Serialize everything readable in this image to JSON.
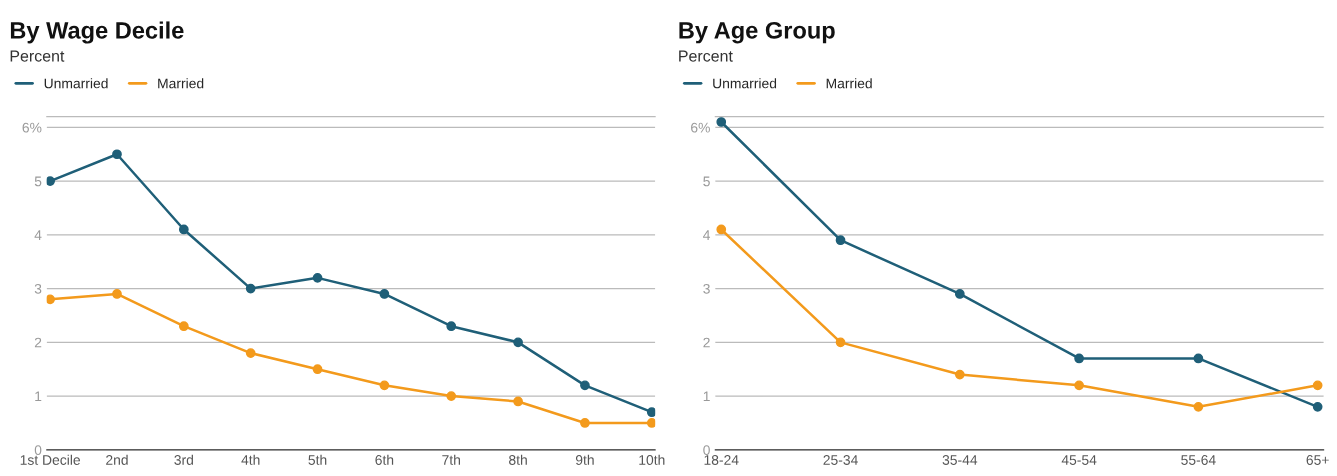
{
  "chart_data": [
    {
      "type": "line",
      "title": "By Wage Decile",
      "subtitle": "Percent",
      "categories": [
        "1st Decile",
        "2nd",
        "3rd",
        "4th",
        "5th",
        "6th",
        "7th",
        "8th",
        "9th",
        "10th"
      ],
      "series": [
        {
          "name": "Unmarried",
          "color": "#1f5f78",
          "values": [
            5.0,
            5.5,
            4.1,
            3.0,
            3.2,
            2.9,
            2.3,
            2.0,
            1.2,
            0.7
          ]
        },
        {
          "name": "Married",
          "color": "#f39a1c",
          "values": [
            2.8,
            2.9,
            2.3,
            1.8,
            1.5,
            1.2,
            1.0,
            0.9,
            0.5,
            0.5
          ]
        }
      ],
      "ylim": [
        0,
        6.2
      ],
      "yticks": [
        0,
        1,
        2,
        3,
        4,
        5,
        {
          "value": 6,
          "label": "6%"
        }
      ],
      "grid": "y",
      "legend": "top left",
      "marker": "circle"
    },
    {
      "type": "line",
      "title": "By Age Group",
      "subtitle": "Percent",
      "categories": [
        "18-24",
        "25-34",
        "35-44",
        "45-54",
        "55-64",
        "65+"
      ],
      "series": [
        {
          "name": "Unmarried",
          "color": "#1f5f78",
          "values": [
            6.1,
            3.9,
            2.9,
            1.7,
            1.7,
            0.8
          ]
        },
        {
          "name": "Married",
          "color": "#f39a1c",
          "values": [
            4.1,
            2.0,
            1.4,
            1.2,
            0.8,
            1.2
          ]
        }
      ],
      "ylim": [
        0,
        6.2
      ],
      "yticks": [
        0,
        1,
        2,
        3,
        4,
        5,
        {
          "value": 6,
          "label": "6%"
        }
      ],
      "grid": "y",
      "legend": "top left",
      "marker": "circle"
    }
  ]
}
